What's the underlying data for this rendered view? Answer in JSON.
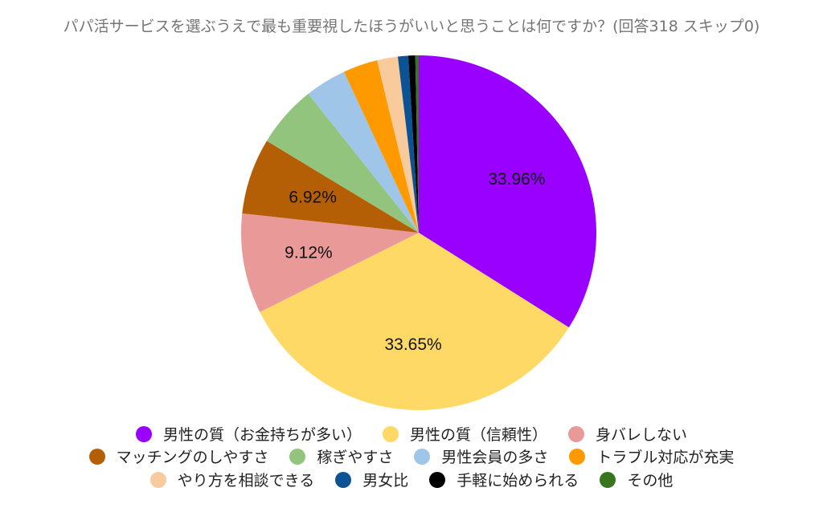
{
  "title": "パパ活サービスを選ぶうえで最も重要視したほうがいいと思うことは何ですか？(回答318 スキップ0)",
  "chart_data": {
    "type": "pie",
    "title": "パパ活サービスを選ぶうえで最も重要視したほうがいいと思うことは何ですか？(回答318 スキップ0)",
    "responses": 318,
    "skipped": 0,
    "start_angle_deg": 0,
    "direction": "clockwise",
    "legend_position": "bottom",
    "slices": [
      {
        "label": "男性の質（お金持ちが多い）",
        "value": 33.96,
        "color": "#9900ff",
        "shown_label": "33.96%"
      },
      {
        "label": "男性の質（信頼性）",
        "value": 33.65,
        "color": "#ffd966",
        "shown_label": "33.65%"
      },
      {
        "label": "身バレしない",
        "value": 9.12,
        "color": "#ea9999",
        "shown_label": "9.12%"
      },
      {
        "label": "マッチングのしやすさ",
        "value": 6.92,
        "color": "#b45f06",
        "shown_label": "6.92%"
      },
      {
        "label": "稼ぎやすさ",
        "value": 5.66,
        "color": "#93c47d",
        "shown_label": ""
      },
      {
        "label": "男性会員の多さ",
        "value": 3.77,
        "color": "#9fc5e8",
        "shown_label": ""
      },
      {
        "label": "トラブル対応が充実",
        "value": 3.14,
        "color": "#ff9900",
        "shown_label": ""
      },
      {
        "label": "やり方を相談できる",
        "value": 1.89,
        "color": "#f9cb9c",
        "shown_label": ""
      },
      {
        "label": "男女比",
        "value": 0.94,
        "color": "#0b5394",
        "shown_label": ""
      },
      {
        "label": "手軽に始められる",
        "value": 0.63,
        "color": "#000000",
        "shown_label": ""
      },
      {
        "label": "その他",
        "value": 0.31,
        "color": "#38761d",
        "shown_label": ""
      }
    ]
  },
  "legend": {
    "rows": [
      [
        0,
        1,
        2
      ],
      [
        3,
        4,
        5,
        6
      ],
      [
        7,
        8,
        9,
        10
      ]
    ]
  }
}
